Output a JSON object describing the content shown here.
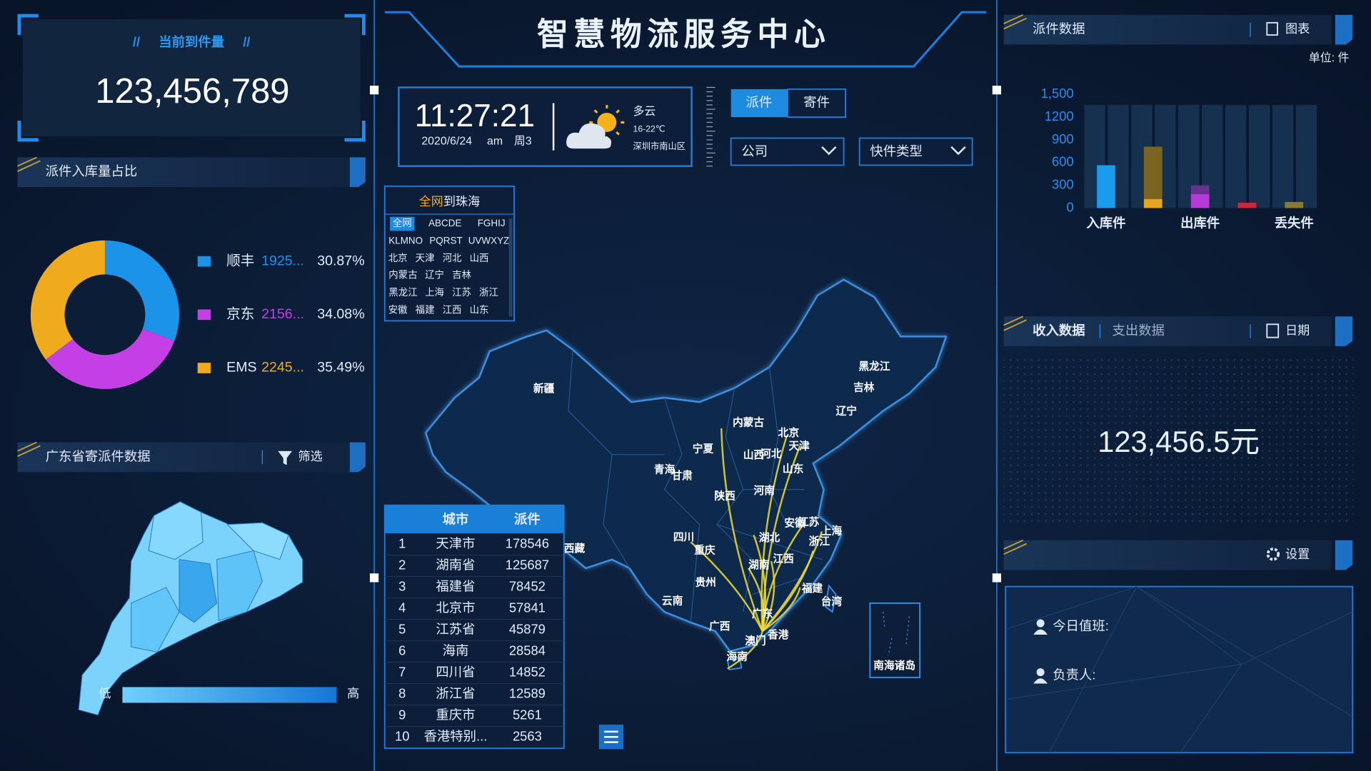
{
  "header": {
    "title": "智慧物流服务中心"
  },
  "arrivals": {
    "title": "当前到件量",
    "value": "123,456,789"
  },
  "share_panel": {
    "title": "派件入库量占比"
  },
  "guangdong": {
    "title": "广东省寄派件数据",
    "filter": "筛选",
    "low": "低",
    "high": "高"
  },
  "clock": {
    "time": "11:27:21",
    "date": "2020/6/24",
    "period": "am",
    "weekday": "周3"
  },
  "weather": {
    "condition": "多云",
    "temperature": "16-22℃",
    "location": "深圳市南山区"
  },
  "tabs": [
    "派件",
    "寄件"
  ],
  "dropdowns": [
    "公司",
    "快件类型"
  ],
  "region_picker": {
    "title_highlight": "全网",
    "title_rest": "到珠海",
    "letters": [
      "全网",
      "ABCDE",
      "FGHIJ",
      "KLMNO",
      "PQRST",
      "UVWXYZ"
    ],
    "provinces": [
      "北京",
      "天津",
      "河北",
      "山西",
      "内蒙古",
      "辽宁",
      "吉林",
      "黑龙江",
      "上海",
      "江苏",
      "浙江",
      "安徽",
      "福建",
      "江西",
      "山东"
    ]
  },
  "ranking_table": {
    "columns": [
      "城市",
      "派件"
    ],
    "rows": [
      [
        1,
        "天津市",
        178546
      ],
      [
        2,
        "湖南省",
        125687
      ],
      [
        3,
        "福建省",
        78452
      ],
      [
        4,
        "北京市",
        57841
      ],
      [
        5,
        "江苏省",
        45879
      ],
      [
        6,
        "海南",
        28584
      ],
      [
        7,
        "四川省",
        14852
      ],
      [
        8,
        "浙江省",
        12589
      ],
      [
        9,
        "重庆市",
        5261
      ],
      [
        10,
        "香港特别...",
        2563
      ]
    ]
  },
  "map": {
    "labels": [
      "新疆",
      "西藏",
      "青海",
      "甘肃",
      "宁夏",
      "内蒙古",
      "黑龙江",
      "吉林",
      "辽宁",
      "北京",
      "天津",
      "河北",
      "山西",
      "山东",
      "陕西",
      "河南",
      "四川",
      "重庆",
      "湖北",
      "安徽",
      "江苏",
      "上海",
      "浙江",
      "湖南",
      "江西",
      "贵州",
      "云南",
      "广西",
      "广东",
      "福建",
      "台湾",
      "香港",
      "澳门",
      "海南",
      "南海诸岛"
    ]
  },
  "delivery_panel": {
    "title": "派件数据",
    "button": "图表",
    "unit": "单位: 件"
  },
  "finance": {
    "tabs": [
      "收入数据",
      "支出数据"
    ],
    "button": "日期",
    "value": "123,456.5元"
  },
  "duty": {
    "button": "设置",
    "on_duty": "今日值班:",
    "manager": "负责人:"
  },
  "chart_data": [
    {
      "type": "pie",
      "categories": [
        "顺丰",
        "京东",
        "EMS"
      ],
      "values": [
        30.87,
        34.08,
        35.49
      ],
      "value_labels": [
        "30.87%",
        "34.08%",
        "35.49%"
      ],
      "count_labels": [
        "1925...",
        "2156...",
        "2245..."
      ],
      "colors": [
        "#1a93e8",
        "#c43fe6",
        "#f0aa1e"
      ]
    },
    {
      "type": "bar",
      "categories": [
        "入库件",
        null,
        "出库件",
        null,
        "丢失件"
      ],
      "ylim": [
        0,
        1500
      ],
      "yticks": [
        0,
        300,
        600,
        900,
        1200,
        {
          "value": 1500,
          "label": "1,500"
        }
      ],
      "stacked": true,
      "series": [
        {
          "values": [
            565,
            120,
            185,
            70,
            80
          ],
          "colors": [
            "#1a9cec",
            "#e6a51c",
            "#b63ad8",
            "#c8283a",
            "#8c7a2c"
          ]
        },
        {
          "values": [
            null,
            690,
            115,
            null,
            null
          ],
          "colors": [
            "#1a9cec",
            "#7a6420",
            "#66328e",
            "#c8283a",
            "#8c7a2c"
          ]
        }
      ]
    }
  ]
}
